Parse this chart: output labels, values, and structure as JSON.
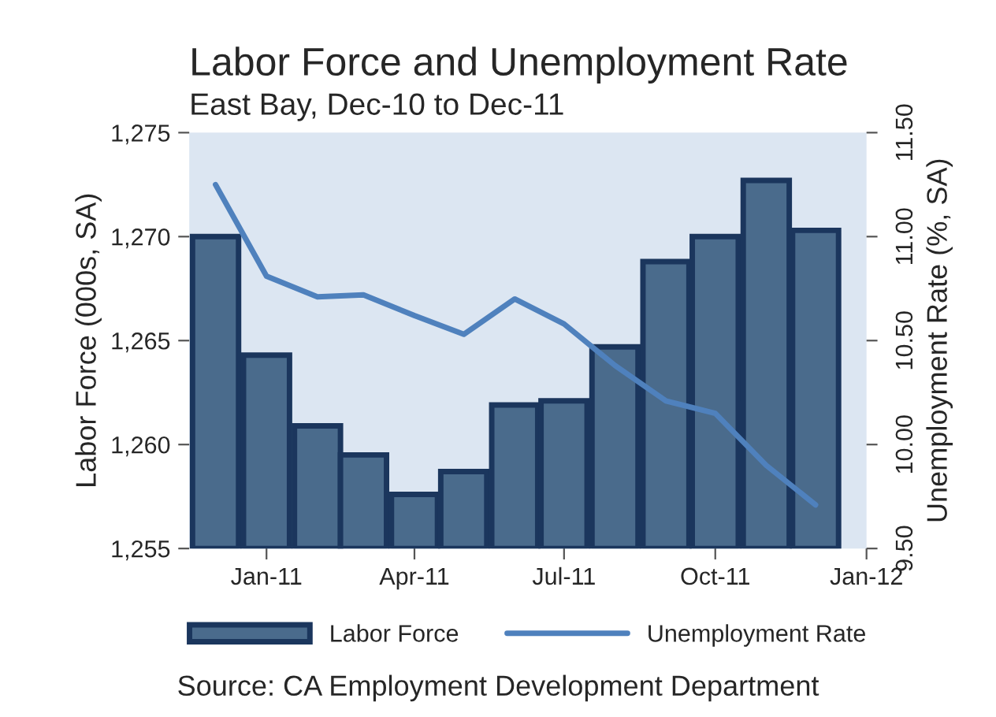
{
  "chart_data": {
    "type": "bar",
    "title": "Labor Force and Unemployment Rate",
    "subtitle": "East Bay, Dec-10 to Dec-11",
    "ylabel": "Labor Force (000s, SA)",
    "y2label": "Unemployment Rate (%, SA)",
    "x": [
      "2010-12",
      "2011-01",
      "2011-02",
      "2011-03",
      "2011-04",
      "2011-05",
      "2011-06",
      "2011-07",
      "2011-08",
      "2011-09",
      "2011-10",
      "2011-11",
      "2011-12"
    ],
    "xlim": [
      "2010-11-15",
      "2012-01-01"
    ],
    "xticks": [
      {
        "value": "2011-01",
        "label": "Jan-11"
      },
      {
        "value": "2011-04",
        "label": "Apr-11"
      },
      {
        "value": "2011-07",
        "label": "Jul-11"
      },
      {
        "value": "2011-10",
        "label": "Oct-11"
      },
      {
        "value": "2012-01",
        "label": "Jan-12"
      }
    ],
    "ylim": [
      1255,
      1275
    ],
    "yticks": [
      {
        "value": 1255,
        "label": "1,255"
      },
      {
        "value": 1260,
        "label": "1,260"
      },
      {
        "value": 1265,
        "label": "1,265"
      },
      {
        "value": 1270,
        "label": "1,270"
      },
      {
        "value": 1275,
        "label": "1,275"
      }
    ],
    "y2lim": [
      9.5,
      11.5
    ],
    "y2ticks": [
      {
        "value": 9.5,
        "label": "9.50"
      },
      {
        "value": 10,
        "label": "10.00"
      },
      {
        "value": 10.5,
        "label": "10.50"
      },
      {
        "value": 11,
        "label": "11.00"
      },
      {
        "value": 11.5,
        "label": "11.50"
      }
    ],
    "series": [
      {
        "name": "Labor Force",
        "color": "#4a6b8c",
        "values": [
          1270.0,
          1264.3,
          1260.9,
          1259.5,
          1257.6,
          1258.7,
          1261.9,
          1262.1,
          1264.7,
          1268.8,
          1270.0,
          1272.7,
          1270.3
        ]
      },
      {
        "name": "Unemployment Rate",
        "type": "line",
        "axis": "y2",
        "color": "#4f81bd",
        "values": [
          11.25,
          10.81,
          10.71,
          10.72,
          10.62,
          10.53,
          10.7,
          10.58,
          10.38,
          10.21,
          10.15,
          9.9,
          9.71
        ]
      }
    ],
    "legend": "bottom",
    "grid": false,
    "annotations": [
      "Source: CA Employment Development Department"
    ]
  }
}
